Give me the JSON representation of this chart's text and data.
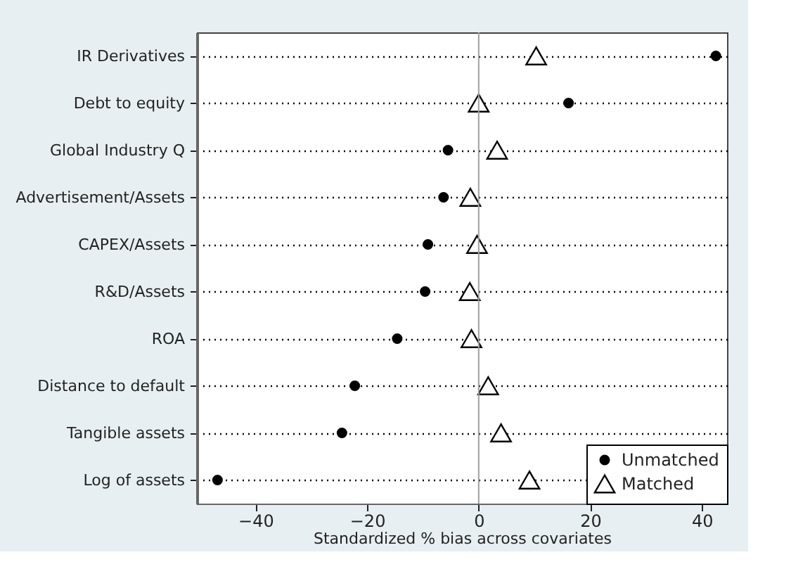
{
  "chart_data": {
    "type": "scatter",
    "xlabel": "Standardized % bias across covariates",
    "categories": [
      "IR Derivatives",
      "Debt to equity",
      "Global Industry Q",
      "Advertisement/Assets",
      "CAPEX/Assets",
      "R&D/Assets",
      "ROA",
      "Distance to default",
      "Tangible assets",
      "Log of assets"
    ],
    "orientation": "horizontal",
    "series": [
      {
        "name": "Unmatched",
        "color": "#000000",
        "marker": "circle",
        "values": [
          42.5,
          16.1,
          -5.5,
          -6.3,
          -9.1,
          -9.6,
          -14.6,
          -22.2,
          -24.5,
          -46.8
        ]
      },
      {
        "name": "Matched",
        "color": "#000000",
        "marker": "triangle",
        "values": [
          10.3,
          0,
          3.3,
          -1.5,
          -0.3,
          -1.6,
          -1.3,
          1.7,
          4.0,
          9.1
        ]
      }
    ],
    "xlim": [
      -50.5,
      44.5
    ],
    "xticks": [
      -40,
      -20,
      0,
      20,
      40
    ],
    "grid": "y",
    "legend": "bottom right",
    "ref_lines": [
      {
        "axis": "x",
        "value": 0,
        "color": "#a0a0a0"
      }
    ]
  }
}
